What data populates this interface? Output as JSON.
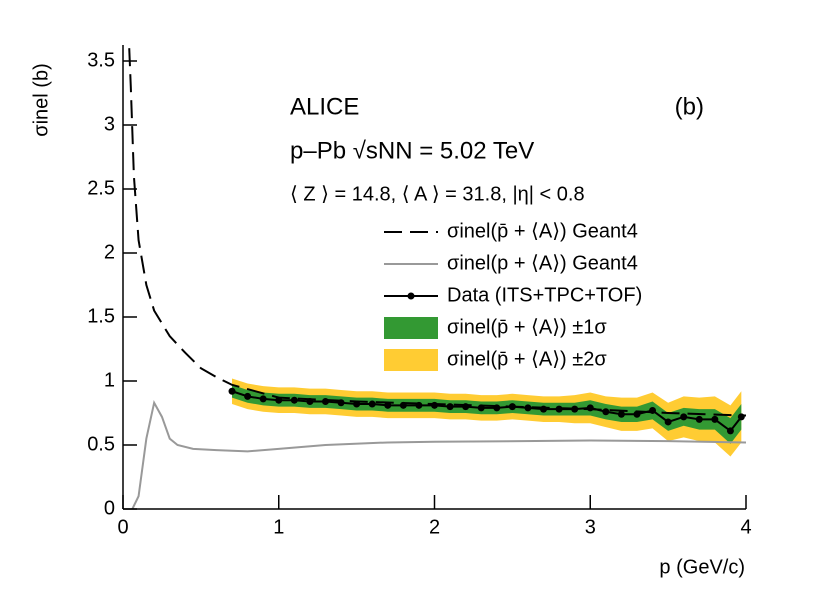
{
  "chart_data": {
    "type": "line",
    "annotations": [
      "ALICE",
      "(b)",
      "p–Pb √sNN = 5.02 TeV",
      "⟨ Z ⟩ = 14.8, ⟨ A ⟩ = 31.8, |η| < 0.8"
    ],
    "xlabel": "p (GeV/c)",
    "ylabel": "σinel (b)",
    "xlim": [
      0,
      4
    ],
    "ylim": [
      0,
      3.625
    ],
    "xticks": [
      0,
      1,
      2,
      3,
      4
    ],
    "yticks": [
      0,
      0.5,
      1,
      1.5,
      2,
      2.5,
      3,
      3.5
    ],
    "legend": "top-right",
    "series": [
      {
        "name": "σinel(p̄ + ⟨A⟩) ±2σ",
        "kind": "band",
        "color": "#ffcc33",
        "x": [
          0.7,
          0.8,
          0.9,
          1.0,
          1.1,
          1.2,
          1.3,
          1.4,
          1.5,
          1.6,
          1.7,
          1.8,
          1.9,
          2.0,
          2.1,
          2.2,
          2.3,
          2.4,
          2.5,
          2.6,
          2.7,
          2.8,
          2.9,
          3.0,
          3.1,
          3.2,
          3.3,
          3.4,
          3.5,
          3.6,
          3.7,
          3.8,
          3.9,
          3.97
        ],
        "values": [
          0.92,
          0.88,
          0.86,
          0.85,
          0.85,
          0.84,
          0.84,
          0.83,
          0.82,
          0.82,
          0.81,
          0.81,
          0.81,
          0.81,
          0.8,
          0.8,
          0.79,
          0.79,
          0.8,
          0.79,
          0.78,
          0.78,
          0.78,
          0.79,
          0.76,
          0.74,
          0.74,
          0.77,
          0.68,
          0.72,
          0.7,
          0.7,
          0.61,
          0.72
        ],
        "errors": [
          0.1,
          0.1,
          0.1,
          0.1,
          0.1,
          0.1,
          0.1,
          0.1,
          0.1,
          0.1,
          0.1,
          0.1,
          0.1,
          0.1,
          0.1,
          0.1,
          0.1,
          0.1,
          0.1,
          0.1,
          0.1,
          0.1,
          0.11,
          0.12,
          0.12,
          0.13,
          0.13,
          0.14,
          0.15,
          0.16,
          0.17,
          0.18,
          0.2,
          0.2
        ]
      },
      {
        "name": "σinel(p̄ + ⟨A⟩) ±1σ",
        "kind": "band",
        "color": "#339933",
        "x": [
          0.7,
          0.8,
          0.9,
          1.0,
          1.1,
          1.2,
          1.3,
          1.4,
          1.5,
          1.6,
          1.7,
          1.8,
          1.9,
          2.0,
          2.1,
          2.2,
          2.3,
          2.4,
          2.5,
          2.6,
          2.7,
          2.8,
          2.9,
          3.0,
          3.1,
          3.2,
          3.3,
          3.4,
          3.5,
          3.6,
          3.7,
          3.8,
          3.9,
          3.97
        ],
        "values": [
          0.92,
          0.88,
          0.86,
          0.85,
          0.85,
          0.84,
          0.84,
          0.83,
          0.82,
          0.82,
          0.81,
          0.81,
          0.81,
          0.81,
          0.8,
          0.8,
          0.79,
          0.79,
          0.8,
          0.79,
          0.78,
          0.78,
          0.78,
          0.79,
          0.76,
          0.74,
          0.74,
          0.77,
          0.68,
          0.72,
          0.7,
          0.7,
          0.61,
          0.72
        ],
        "errors": [
          0.05,
          0.05,
          0.05,
          0.05,
          0.05,
          0.05,
          0.05,
          0.05,
          0.05,
          0.05,
          0.05,
          0.05,
          0.05,
          0.05,
          0.05,
          0.05,
          0.05,
          0.05,
          0.05,
          0.05,
          0.05,
          0.05,
          0.05,
          0.06,
          0.06,
          0.06,
          0.06,
          0.07,
          0.07,
          0.07,
          0.08,
          0.08,
          0.1,
          0.1
        ]
      },
      {
        "name": "σinel(p̄ + ⟨A⟩) Geant4",
        "kind": "line",
        "style": "dashed",
        "color": "#000000",
        "x": [
          0.04,
          0.05,
          0.07,
          0.1,
          0.15,
          0.2,
          0.3,
          0.4,
          0.5,
          0.6,
          0.7,
          1.0,
          1.5,
          2.0,
          2.5,
          3.0,
          3.5,
          4.0
        ],
        "values": [
          3.6,
          3.3,
          2.6,
          2.1,
          1.75,
          1.55,
          1.35,
          1.22,
          1.1,
          1.03,
          0.97,
          0.87,
          0.84,
          0.82,
          0.8,
          0.78,
          0.75,
          0.73
        ]
      },
      {
        "name": "σinel(p + ⟨A⟩) Geant4",
        "kind": "line",
        "style": "solid",
        "color": "#999999",
        "x": [
          0.06,
          0.1,
          0.15,
          0.2,
          0.25,
          0.3,
          0.35,
          0.45,
          0.6,
          0.8,
          1.0,
          1.3,
          1.7,
          2.0,
          3.0,
          3.5,
          4.0
        ],
        "values": [
          0,
          0.1,
          0.55,
          0.83,
          0.72,
          0.55,
          0.5,
          0.47,
          0.46,
          0.45,
          0.47,
          0.5,
          0.52,
          0.525,
          0.535,
          0.53,
          0.52
        ]
      },
      {
        "name": "Data (ITS+TPC+TOF)",
        "kind": "markers",
        "style": "solid",
        "color": "#000000",
        "x": [
          0.7,
          0.8,
          0.9,
          1.0,
          1.1,
          1.2,
          1.3,
          1.4,
          1.5,
          1.6,
          1.7,
          1.8,
          1.9,
          2.0,
          2.1,
          2.2,
          2.3,
          2.4,
          2.5,
          2.6,
          2.7,
          2.8,
          2.9,
          3.0,
          3.1,
          3.2,
          3.3,
          3.4,
          3.5,
          3.6,
          3.7,
          3.8,
          3.9,
          3.97
        ],
        "values": [
          0.92,
          0.88,
          0.86,
          0.85,
          0.85,
          0.84,
          0.84,
          0.83,
          0.82,
          0.82,
          0.81,
          0.81,
          0.81,
          0.81,
          0.8,
          0.8,
          0.79,
          0.79,
          0.8,
          0.79,
          0.78,
          0.78,
          0.78,
          0.79,
          0.76,
          0.74,
          0.74,
          0.77,
          0.68,
          0.72,
          0.7,
          0.7,
          0.61,
          0.72
        ]
      }
    ]
  }
}
